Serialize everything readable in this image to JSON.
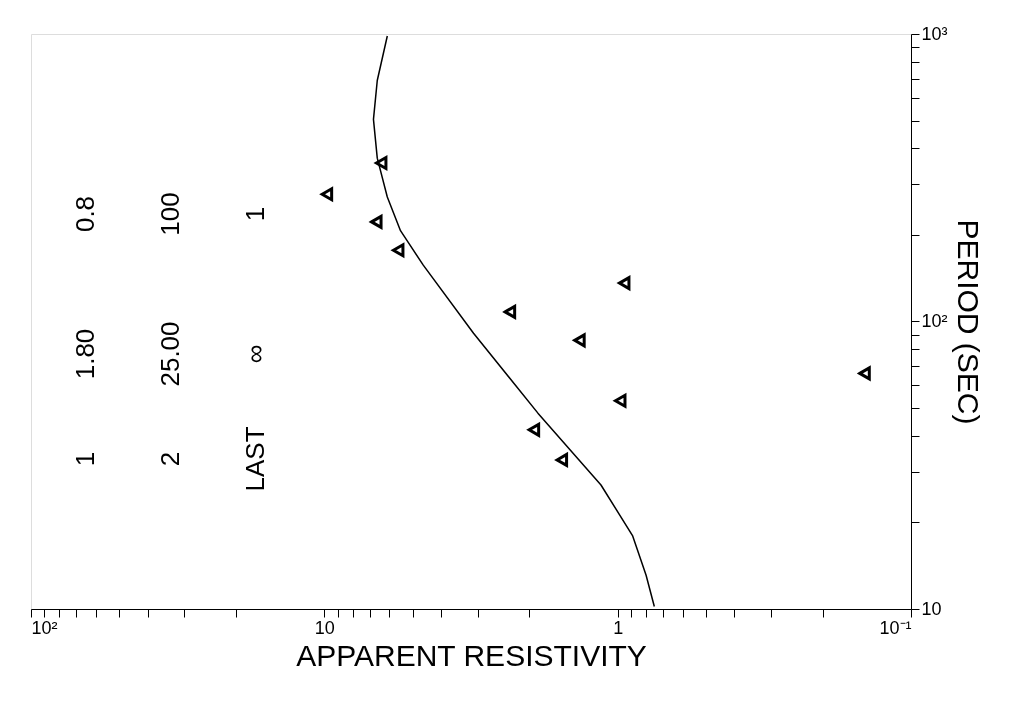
{
  "chart_data": {
    "type": "scatter",
    "xlabel": "APPARENT RESISTIVITY",
    "ylabel": "PERIOD (SEC)",
    "xlim": [
      100,
      0.1
    ],
    "ylim": [
      10,
      1000
    ],
    "xticks": [
      {
        "value": 100,
        "label": "10²"
      },
      {
        "value": 90,
        "label": null
      },
      {
        "value": 80,
        "label": null
      },
      {
        "value": 70,
        "label": null
      },
      {
        "value": 60,
        "label": null
      },
      {
        "value": 50,
        "label": null
      },
      {
        "value": 40,
        "label": null
      },
      {
        "value": 30,
        "label": null
      },
      {
        "value": 20,
        "label": null
      },
      10,
      {
        "value": 9,
        "label": null
      },
      {
        "value": 8,
        "label": null
      },
      {
        "value": 7,
        "label": null
      },
      {
        "value": 6,
        "label": null
      },
      {
        "value": 5,
        "label": null
      },
      {
        "value": 4,
        "label": null
      },
      {
        "value": 3,
        "label": null
      },
      {
        "value": 2,
        "label": null
      },
      1,
      {
        "value": 0.9,
        "label": null
      },
      {
        "value": 0.8,
        "label": null
      },
      {
        "value": 0.7,
        "label": null
      },
      {
        "value": 0.6,
        "label": null
      },
      {
        "value": 0.5,
        "label": null
      },
      {
        "value": 0.4,
        "label": null
      },
      {
        "value": 0.3,
        "label": null
      },
      {
        "value": 0.2,
        "label": null
      },
      {
        "value": 0.1,
        "label": "10⁻¹"
      }
    ],
    "yticks": [
      10,
      {
        "value": 20,
        "label": null
      },
      {
        "value": 30,
        "label": null
      },
      {
        "value": 40,
        "label": null
      },
      {
        "value": 50,
        "label": null
      },
      {
        "value": 60,
        "label": null
      },
      {
        "value": 70,
        "label": null
      },
      {
        "value": 80,
        "label": null
      },
      {
        "value": 90,
        "label": null
      },
      {
        "value": 100,
        "label": "10²"
      },
      {
        "value": 200,
        "label": null
      },
      {
        "value": 300,
        "label": null
      },
      {
        "value": 400,
        "label": null
      },
      {
        "value": 500,
        "label": null
      },
      {
        "value": 600,
        "label": null
      },
      {
        "value": 700,
        "label": null
      },
      {
        "value": 800,
        "label": null
      },
      {
        "value": 900,
        "label": null
      },
      {
        "value": 1000,
        "label": "10³"
      }
    ],
    "log": "xy",
    "grid": false,
    "legend": false,
    "series": [
      {
        "marker": "triangle",
        "color": "#000000",
        "x": [
          6.4,
          9.8,
          6.65,
          5.6,
          0.95,
          2.33,
          1.35,
          0.98,
          1.93,
          1.55,
          0.144
        ],
        "values": [
          356,
          277,
          222,
          177,
          136,
          108,
          86,
          53,
          42,
          33,
          66
        ]
      },
      {
        "type": "line",
        "marker": "none",
        "line_style": "solid",
        "color": "#000000",
        "x": [
          6.1,
          6.6,
          6.8,
          6.6,
          6.1,
          5.5,
          4.6,
          3.1,
          1.87,
          1.14,
          0.89,
          0.8,
          0.75
        ],
        "values": [
          984,
          689,
          505,
          370,
          271,
          207,
          157,
          91,
          48,
          27,
          18,
          13.1,
          10.2
        ]
      }
    ],
    "annotations": [
      "1",
      "1.80",
      "0.8",
      "2",
      "25.00",
      "100",
      "LAST",
      "∞",
      "1"
    ]
  }
}
